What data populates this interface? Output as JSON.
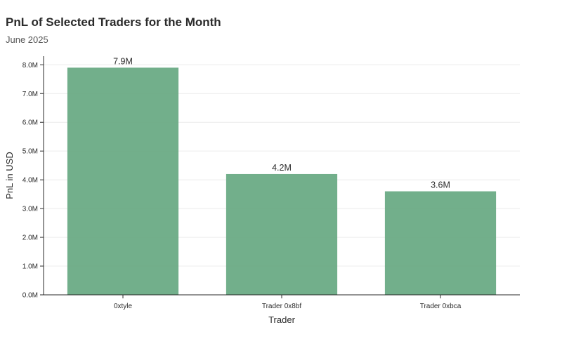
{
  "chart_data": {
    "type": "bar",
    "title": "PnL of Selected Traders for the Month",
    "subtitle": "June 2025",
    "xlabel": "Trader",
    "ylabel": "PnL in USD",
    "categories": [
      "0xtyle",
      "Trader 0x8bf",
      "Trader 0xbca"
    ],
    "values": [
      7900000,
      4200000,
      3600000
    ],
    "data_labels": [
      "7.9M",
      "4.2M",
      "3.6M"
    ],
    "ylim": [
      0,
      8300000
    ],
    "yticks": [
      0,
      1000000,
      2000000,
      3000000,
      4000000,
      5000000,
      6000000,
      7000000,
      8000000
    ],
    "ytick_labels": [
      "0.0M",
      "1.0M",
      "2.0M",
      "3.0M",
      "4.0M",
      "5.0M",
      "6.0M",
      "7.0M",
      "8.0M"
    ],
    "grid": true,
    "bar_color": "#6aab85"
  }
}
